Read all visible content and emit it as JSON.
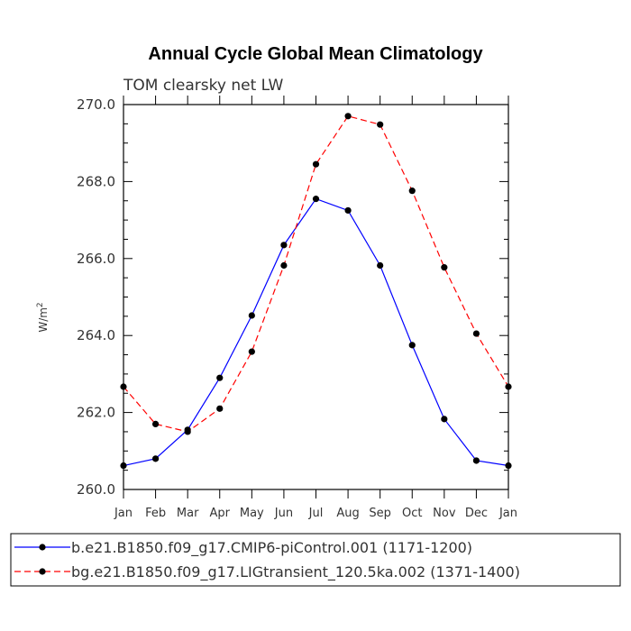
{
  "chart_data": {
    "type": "line",
    "title": "Annual Cycle Global Mean Climatology",
    "subtitle": "TOM clearsky net LW",
    "ylabel": "W/m",
    "ylabel_superscript": "2",
    "categories": [
      "Jan",
      "Feb",
      "Mar",
      "Apr",
      "May",
      "Jun",
      "Jul",
      "Aug",
      "Sep",
      "Oct",
      "Nov",
      "Dec",
      "Jan"
    ],
    "ylim": [
      260.0,
      270.0
    ],
    "yticks": [
      260.0,
      262.0,
      264.0,
      266.0,
      268.0,
      270.0
    ],
    "ytick_labels": [
      "260.0",
      "262.0",
      "264.0",
      "266.0",
      "268.0",
      "270.0"
    ],
    "series": [
      {
        "name": "b.e21.B1850.f09_g17.CMIP6-piControl.001 (1171-1200)",
        "color": "#0000ff",
        "dash": "solid",
        "values": [
          260.62,
          260.8,
          261.55,
          262.9,
          264.52,
          266.35,
          267.55,
          267.25,
          265.82,
          263.75,
          261.83,
          260.75,
          260.62
        ]
      },
      {
        "name": "bg.e21.B1850.f09_g17.LIGtransient_120.5ka.002 (1371-1400)",
        "color": "#ff0000",
        "dash": "dashed",
        "values": [
          262.67,
          261.7,
          261.5,
          262.1,
          263.58,
          265.82,
          268.45,
          269.7,
          269.48,
          267.76,
          265.77,
          264.05,
          262.67
        ]
      }
    ],
    "legend_position": "bottom",
    "marker_color": "#000000"
  }
}
